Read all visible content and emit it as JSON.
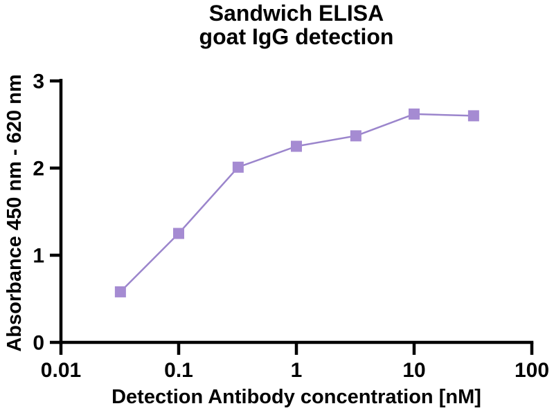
{
  "figure": {
    "title_line1": "Sandwich ELISA",
    "title_line2": "goat IgG detection",
    "xlabel": "Detection Antibody concentration [nM]",
    "ylabel": "Absorbance 450 nm - 620 nm"
  },
  "chart_data": {
    "type": "line",
    "title": "Sandwich ELISA goat IgG detection",
    "title_lines": [
      "Sandwich ELISA",
      "goat IgG detection"
    ],
    "xlabel": "Detection Antibody concentration [nM]",
    "ylabel": "Absorbance 450 nm - 620 nm",
    "x_scale": "log",
    "y_scale": "linear",
    "xlim": [
      0.01,
      100
    ],
    "ylim": [
      0,
      3
    ],
    "x_ticks": [
      0.01,
      0.1,
      1,
      10,
      100
    ],
    "x_tick_labels": [
      "0.01",
      "0.1",
      "1",
      "10",
      "100"
    ],
    "y_ticks": [
      0,
      1,
      2,
      3
    ],
    "y_tick_labels": [
      "0",
      "1",
      "2",
      "3"
    ],
    "grid": false,
    "legend": "none",
    "axis_color": "#000000",
    "background_color": "#ffffff",
    "series": [
      {
        "name": "goat IgG detection",
        "marker": "square",
        "marker_size": 16,
        "marker_color": "#a58bd2",
        "line_color": "#9b85cc",
        "line_width": 2.5,
        "points": [
          {
            "x": 0.032,
            "y": 0.58
          },
          {
            "x": 0.1,
            "y": 1.25
          },
          {
            "x": 0.32,
            "y": 2.01
          },
          {
            "x": 1,
            "y": 2.25
          },
          {
            "x": 3.2,
            "y": 2.37
          },
          {
            "x": 10,
            "y": 2.62
          },
          {
            "x": 32,
            "y": 2.6
          }
        ]
      }
    ]
  }
}
